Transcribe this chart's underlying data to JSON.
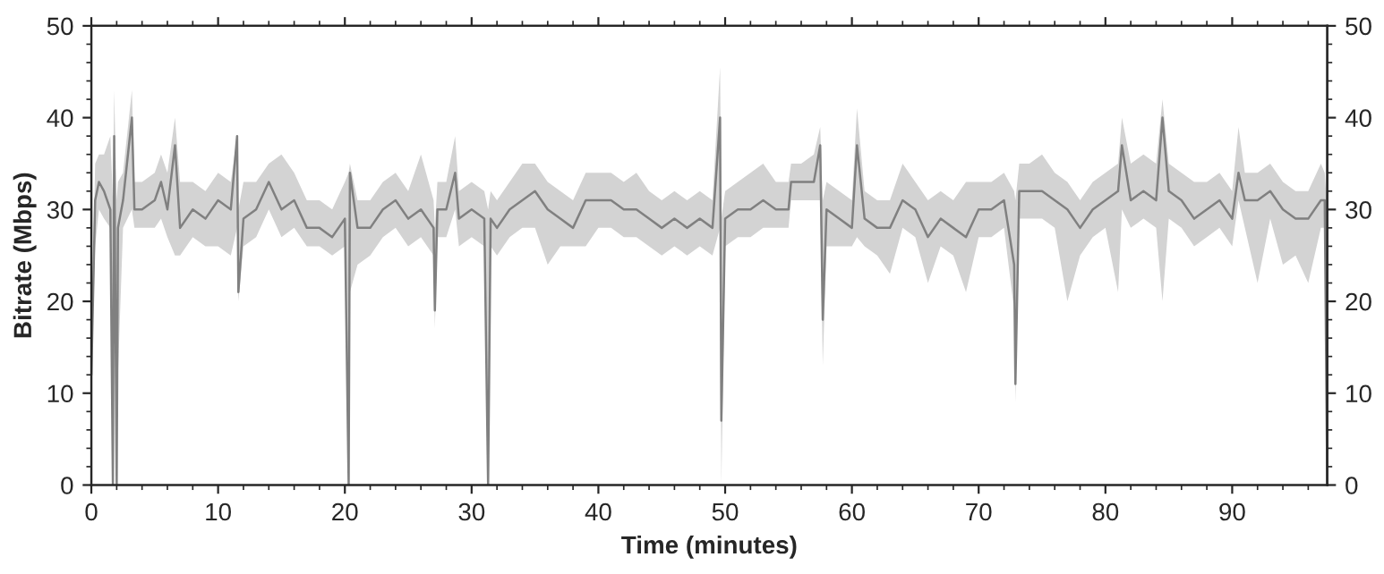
{
  "chart_data": {
    "type": "line",
    "xlabel": "Time (minutes)",
    "ylabel": "Bitrate (Mbps)",
    "xlim": [
      0,
      97.5
    ],
    "xticks": [
      0,
      10,
      20,
      30,
      40,
      50,
      60,
      70,
      80,
      90
    ],
    "ylim": [
      0,
      50
    ],
    "yticks": [
      0,
      10,
      20,
      30,
      40,
      50
    ],
    "y2lim": [
      0,
      50
    ],
    "y2ticks": [
      0,
      10,
      20,
      30,
      40,
      50
    ],
    "grid": false,
    "marker": "none",
    "line_style": "solid",
    "x": [
      0,
      0.3,
      0.6,
      1.0,
      1.5,
      1.7,
      1.8,
      2.0,
      2.1,
      2.5,
      3.2,
      3.4,
      4,
      5,
      5.5,
      6,
      6.6,
      7,
      8,
      9,
      10,
      11,
      11.5,
      11.6,
      12,
      13,
      14,
      15,
      16,
      17,
      18,
      19,
      20,
      20.3,
      20.4,
      21,
      22,
      23,
      24,
      25,
      26,
      27,
      27.1,
      27.3,
      28,
      28.7,
      29,
      30,
      31,
      31.3,
      31.5,
      32,
      33,
      34,
      35,
      36,
      37,
      38,
      39,
      40,
      41,
      42,
      43,
      44,
      45,
      46,
      47,
      48,
      49,
      49.6,
      49.7,
      50,
      51,
      52,
      53,
      54,
      55,
      55.2,
      56,
      57,
      57.5,
      57.7,
      58,
      59,
      60,
      60.4,
      61,
      62,
      63,
      64,
      65,
      66,
      67,
      68,
      69,
      70,
      71,
      72,
      72.8,
      72.9,
      73.2,
      74,
      75,
      76,
      77,
      78,
      79,
      80,
      81,
      81.3,
      82,
      83,
      84,
      84.5,
      85,
      86,
      87,
      88,
      89,
      90,
      90.5,
      91,
      92,
      93,
      94,
      95,
      96,
      97,
      97.3,
      97.5
    ],
    "series": [
      {
        "color": "#808080",
        "values": [
          12,
          31,
          33,
          32,
          30,
          0,
          38,
          0,
          28,
          31,
          40,
          30,
          30,
          31,
          33,
          30,
          37,
          28,
          30,
          29,
          31,
          30,
          38,
          21,
          29,
          30,
          33,
          30,
          31,
          28,
          28,
          27,
          29,
          0,
          34,
          28,
          28,
          30,
          31,
          29,
          30,
          28,
          19,
          30,
          30,
          34,
          29,
          30,
          29,
          0,
          29,
          28,
          30,
          31,
          32,
          30,
          29,
          28,
          31,
          31,
          31,
          30,
          30,
          29,
          28,
          29,
          28,
          29,
          28,
          40,
          7,
          29,
          30,
          30,
          31,
          30,
          30,
          33,
          33,
          33,
          37,
          18,
          30,
          29,
          28,
          37,
          29,
          28,
          28,
          31,
          30,
          27,
          29,
          28,
          27,
          30,
          30,
          31,
          24,
          11,
          32,
          32,
          32,
          31,
          30,
          28,
          30,
          31,
          32,
          37,
          31,
          32,
          31,
          40,
          32,
          31,
          29,
          30,
          31,
          29,
          34,
          31,
          31,
          32,
          30,
          29,
          29,
          31,
          31,
          0
        ],
        "lower": [
          11,
          26,
          30,
          29,
          28,
          0,
          30,
          0,
          12,
          28,
          30,
          28,
          28,
          28,
          29,
          27,
          25,
          25,
          27,
          26,
          26,
          25,
          28,
          20,
          26,
          27,
          30,
          27,
          28,
          26,
          26,
          25,
          26,
          0,
          21,
          24,
          25,
          27,
          28,
          26,
          27,
          25,
          17,
          27,
          27,
          30,
          26,
          27,
          26,
          0,
          26,
          25,
          27,
          28,
          28,
          24,
          26,
          26,
          26,
          28,
          28,
          27,
          27,
          26,
          25,
          26,
          25,
          26,
          25,
          28,
          0,
          26,
          27,
          27,
          28,
          28,
          28,
          31,
          31,
          31,
          31,
          13,
          26,
          26,
          26,
          27,
          26,
          25,
          23,
          28,
          27,
          22,
          26,
          25,
          21,
          27,
          27,
          28,
          19,
          9,
          29,
          29,
          29,
          28,
          20,
          25,
          27,
          28,
          21,
          30,
          28,
          29,
          28,
          20,
          29,
          28,
          26,
          27,
          28,
          26,
          31,
          28,
          22,
          29,
          24,
          25,
          22,
          28,
          28,
          0
        ],
        "upper": [
          15,
          35,
          36,
          36,
          38,
          31,
          43,
          31,
          33,
          34,
          43,
          33,
          33,
          34,
          36,
          34,
          40,
          33,
          33,
          32,
          34,
          33,
          38,
          30,
          33,
          33,
          35,
          36,
          34,
          31,
          31,
          30,
          33,
          34,
          35,
          31,
          31,
          33,
          34,
          32,
          36,
          31,
          28,
          33,
          33,
          38,
          32,
          33,
          32,
          30,
          32,
          31,
          33,
          35,
          35,
          33,
          32,
          31,
          34,
          34,
          34,
          33,
          34,
          32,
          31,
          32,
          31,
          32,
          31,
          45.5,
          29,
          32,
          33,
          34,
          35,
          33,
          33,
          35,
          35,
          36,
          39,
          31,
          33,
          32,
          31,
          41,
          32,
          31,
          31,
          35,
          33,
          31,
          32,
          31,
          33,
          33,
          33,
          34,
          32,
          31,
          35,
          35,
          36,
          34,
          33,
          31,
          33,
          34,
          35,
          40,
          35,
          36,
          35,
          42,
          35,
          34,
          33,
          33,
          34,
          32,
          39,
          34,
          34,
          35,
          33,
          32,
          32,
          35,
          34,
          30
        ]
      }
    ]
  }
}
